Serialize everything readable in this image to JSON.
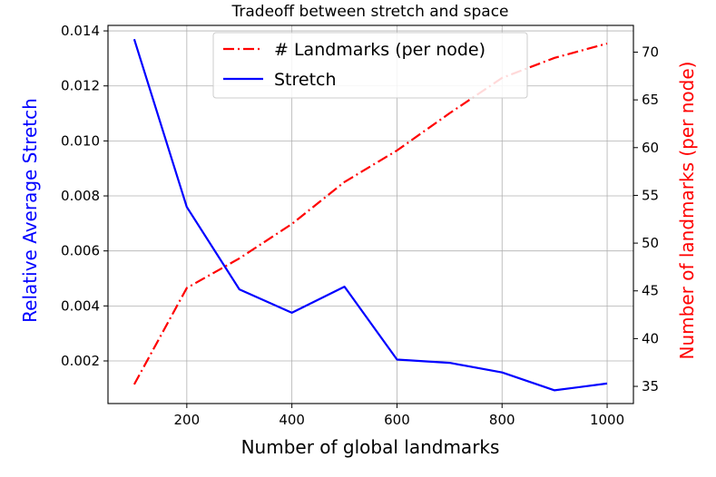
{
  "chart_data": {
    "type": "line",
    "title": "Tradeoff between stretch and space",
    "xlabel": "Number of global landmarks",
    "ylabel_left": "Relative Average Stretch",
    "ylabel_right": "Number of landmarks (per node)",
    "x": [
      100,
      200,
      300,
      400,
      500,
      600,
      700,
      800,
      900,
      1000
    ],
    "xlim": [
      50,
      1050
    ],
    "ylim_left": [
      0.00045,
      0.0142
    ],
    "ylim_right": [
      33.2,
      72.8
    ],
    "x_ticks": [
      200,
      400,
      600,
      800,
      1000
    ],
    "y_ticks_left": [
      "0.002",
      "0.004",
      "0.006",
      "0.008",
      "0.010",
      "0.012",
      "0.014"
    ],
    "y_ticks_right": [
      35,
      40,
      45,
      50,
      55,
      60,
      65,
      70
    ],
    "grid": true,
    "legend_position": "top-center",
    "series": [
      {
        "name": "Stretch",
        "axis": "left",
        "color": "#0000ff",
        "style": "solid",
        "values": [
          0.0137,
          0.0076,
          0.0046,
          0.00375,
          0.0047,
          0.00205,
          0.00193,
          0.00158,
          0.00093,
          0.00118
        ]
      },
      {
        "name": "# Landmarks (per node)",
        "axis": "right",
        "color": "#ff0000",
        "style": "dashdot",
        "values": [
          35.2,
          45.3,
          48.4,
          52.0,
          56.4,
          59.7,
          63.6,
          67.3,
          69.4,
          70.9
        ]
      }
    ]
  }
}
